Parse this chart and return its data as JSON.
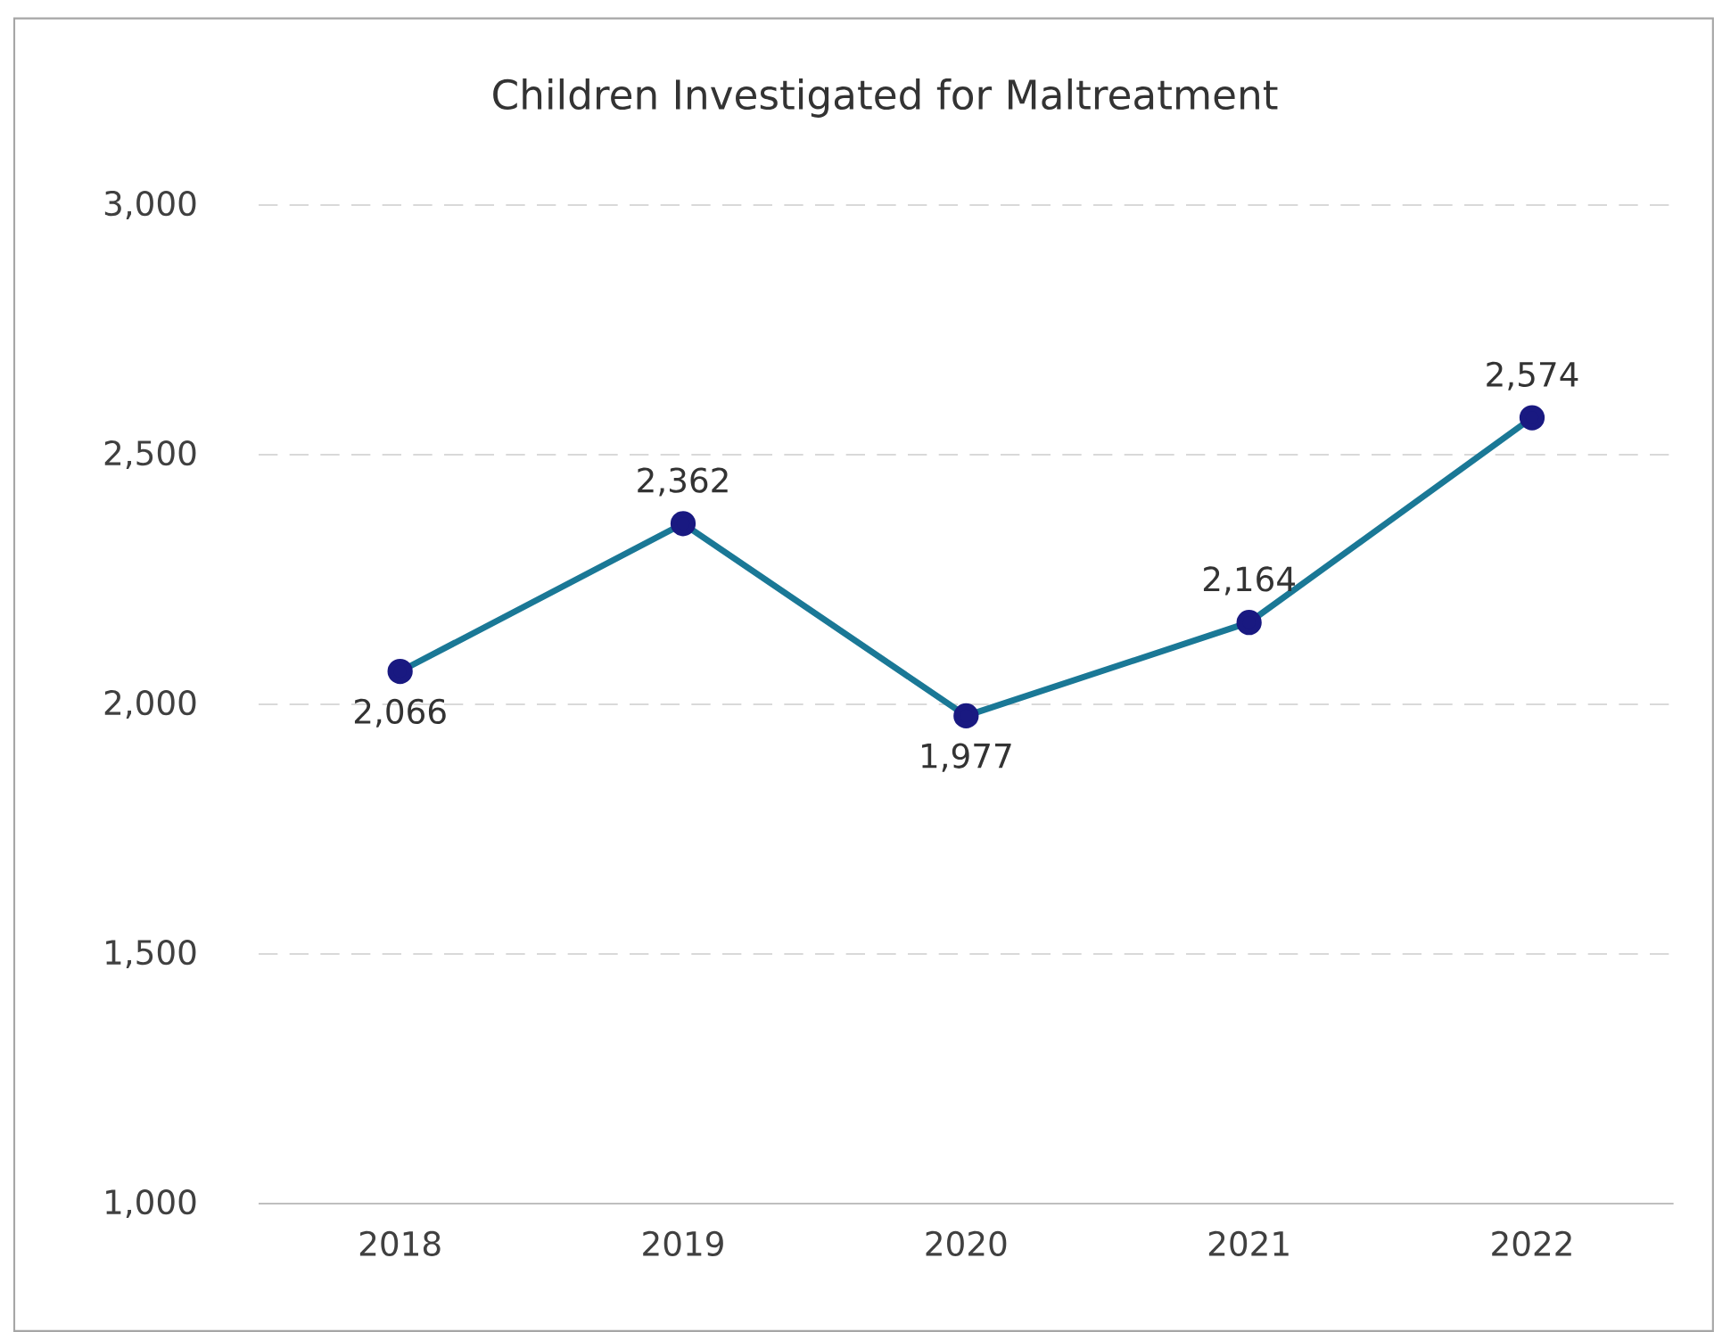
{
  "chart_data": {
    "type": "line",
    "title": "Children Investigated for Maltreatment",
    "categories": [
      "2018",
      "2019",
      "2020",
      "2021",
      "2022"
    ],
    "values": [
      2066,
      2362,
      1977,
      2164,
      2574
    ],
    "value_labels": [
      "2,066",
      "2,362",
      "1,977",
      "2,164",
      "2,574"
    ],
    "color": "#1a7896",
    "marker": "circle",
    "ylim": [
      1000,
      3000
    ],
    "yticks": [
      {
        "value": 1000,
        "label": "1,000"
      },
      {
        "value": 1500,
        "label": "1,500"
      },
      {
        "value": 2000,
        "label": "2,000"
      },
      {
        "value": 2500,
        "label": "2,500"
      },
      {
        "value": 3000,
        "label": "3,000"
      }
    ],
    "grid": "y"
  }
}
